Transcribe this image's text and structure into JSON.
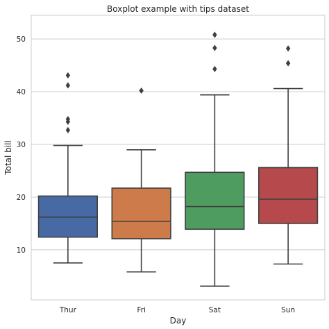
{
  "chart_data": {
    "type": "box",
    "title": "Boxplot example with tips dataset",
    "xlabel": "Day",
    "ylabel": "Total bill",
    "categories": [
      "Thur",
      "Fri",
      "Sat",
      "Sun"
    ],
    "ylim": [
      0.5,
      54.5
    ],
    "yticks": [
      10,
      20,
      30,
      40,
      50
    ],
    "grid": "horizontal",
    "boxes": [
      {
        "category": "Thur",
        "color": "#4c72b0",
        "whisker_low": 7.5,
        "q1": 12.4,
        "median": 16.2,
        "q3": 20.2,
        "whisker_high": 29.8,
        "outliers": [
          32.7,
          34.3,
          34.8,
          41.2,
          43.1
        ]
      },
      {
        "category": "Fri",
        "color": "#dd8452",
        "whisker_low": 5.8,
        "q1": 12.1,
        "median": 15.4,
        "q3": 21.7,
        "whisker_high": 28.97,
        "outliers": [
          40.2
        ]
      },
      {
        "category": "Sat",
        "color": "#55a868",
        "whisker_low": 3.1,
        "q1": 13.9,
        "median": 18.2,
        "q3": 24.7,
        "whisker_high": 39.4,
        "outliers": [
          44.3,
          48.3,
          50.8
        ]
      },
      {
        "category": "Sun",
        "color": "#c44e52",
        "whisker_low": 7.3,
        "q1": 15.0,
        "median": 19.6,
        "q3": 25.6,
        "whisker_high": 40.6,
        "outliers": [
          45.4,
          48.2
        ]
      }
    ]
  }
}
